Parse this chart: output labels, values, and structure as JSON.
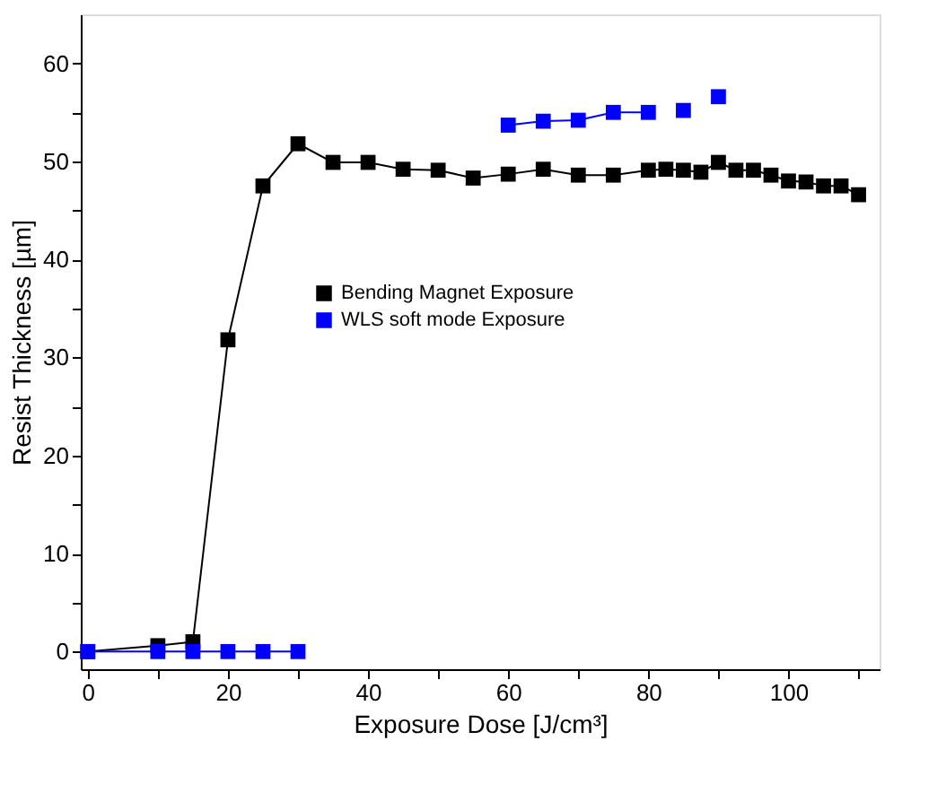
{
  "chart_data": {
    "type": "line",
    "xlabel": "Exposure Dose [J/cm³]",
    "ylabel": "Resist Thickness [µm]",
    "xlim": [
      -1,
      113
    ],
    "ylim": [
      -1.8,
      65
    ],
    "xticks": [
      0,
      {
        "value": 10,
        "label": null
      },
      20,
      {
        "value": 30,
        "label": null
      },
      40,
      {
        "value": 50,
        "label": null
      },
      60,
      {
        "value": 70,
        "label": null
      },
      80,
      {
        "value": 90,
        "label": null
      },
      100,
      {
        "value": 110,
        "label": null
      }
    ],
    "yticks": [
      0,
      {
        "value": 5,
        "label": null
      },
      10,
      {
        "value": 15,
        "label": null
      },
      20,
      {
        "value": 25,
        "label": null
      },
      30,
      {
        "value": 35,
        "label": null
      },
      40,
      {
        "value": 45,
        "label": null
      },
      50,
      {
        "value": 55,
        "label": null
      },
      60
    ],
    "grid": false,
    "legend": "center",
    "marker": "square",
    "line_style": "solid",
    "series": [
      {
        "name": "Bending Magnet Exposure",
        "color": "#000000",
        "x": [
          0,
          10,
          15,
          20,
          25,
          30,
          35,
          40,
          45,
          50,
          55,
          60,
          65,
          70,
          75,
          80,
          82.5,
          85,
          87.5,
          90,
          92.5,
          95,
          97.5,
          100,
          102.5,
          105,
          107.5,
          110
        ],
        "values": [
          0,
          0.6,
          1.0,
          31.8,
          47.5,
          51.8,
          49.9,
          49.9,
          49.2,
          49.1,
          48.3,
          48.7,
          49.2,
          48.6,
          48.6,
          49.1,
          49.2,
          49.1,
          48.9,
          49.9,
          49.1,
          49.1,
          48.6,
          48.0,
          47.9,
          47.5,
          47.5,
          46.6
        ]
      },
      {
        "name": "WLS soft mode Exposure",
        "color": "#0000ff",
        "x": [
          0,
          10,
          15,
          20,
          25,
          30,
          45,
          60,
          65,
          70,
          75,
          80,
          82.5,
          85,
          87.5,
          90
        ],
        "values": [
          0,
          0,
          0,
          0,
          0,
          0,
          null,
          53.7,
          54.1,
          54.2,
          55.0,
          55.0,
          null,
          55.2,
          null,
          56.6
        ]
      }
    ]
  }
}
